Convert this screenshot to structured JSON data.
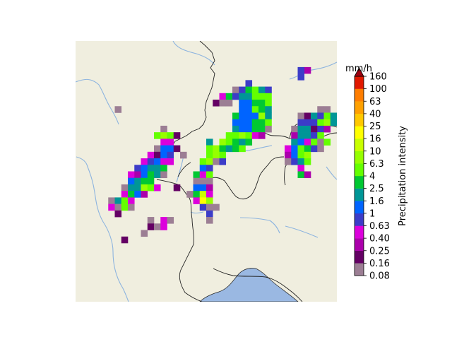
{
  "chart_data": {
    "type": "heatmap",
    "title": "",
    "colorbar": {
      "unit": "mm/h",
      "label": "Precipitation intensity",
      "ticks": [
        "0.08",
        "0.16",
        "0.25",
        "0.40",
        "0.63",
        "1",
        "1.6",
        "2.5",
        "4",
        "6.3",
        "10",
        "16",
        "25",
        "40",
        "63",
        "100",
        "160"
      ],
      "colors": [
        "#9c7e94",
        "#640064",
        "#ab00ab",
        "#dc00dc",
        "#3c3cc8",
        "#0064ff",
        "#009696",
        "#00c832",
        "#64ff00",
        "#96ff00",
        "#c8ff00",
        "#ffff00",
        "#ffc800",
        "#ffa000",
        "#ff7d00",
        "#e11900"
      ],
      "extend_color": "#a0000f"
    },
    "map": {
      "land_color": "#f0eedf",
      "lake_color": "#9ab8e2",
      "river_color": "#8db4df",
      "border_color": "#222222"
    },
    "grid_cols": 40,
    "grid_rows": 40,
    "cells": [
      [
        35,
        4,
        2
      ],
      [
        34,
        4,
        4
      ],
      [
        34,
        5,
        4
      ],
      [
        26,
        6,
        4
      ],
      [
        24,
        7,
        0
      ],
      [
        25,
        7,
        4
      ],
      [
        26,
        7,
        7
      ],
      [
        27,
        7,
        8
      ],
      [
        28,
        7,
        6
      ],
      [
        29,
        7,
        4
      ],
      [
        22,
        8,
        3
      ],
      [
        23,
        8,
        7
      ],
      [
        24,
        8,
        4
      ],
      [
        25,
        8,
        6
      ],
      [
        26,
        8,
        6
      ],
      [
        27,
        8,
        8
      ],
      [
        28,
        8,
        8
      ],
      [
        29,
        8,
        8
      ],
      [
        21,
        9,
        1
      ],
      [
        22,
        9,
        0
      ],
      [
        23,
        9,
        0
      ],
      [
        25,
        9,
        5
      ],
      [
        26,
        9,
        5
      ],
      [
        27,
        9,
        7
      ],
      [
        28,
        9,
        7
      ],
      [
        29,
        9,
        8
      ],
      [
        6,
        10,
        0
      ],
      [
        25,
        10,
        5
      ],
      [
        26,
        10,
        5
      ],
      [
        27,
        10,
        8
      ],
      [
        28,
        10,
        7
      ],
      [
        29,
        10,
        6
      ],
      [
        37,
        10,
        0
      ],
      [
        38,
        10,
        0
      ],
      [
        24,
        11,
        7
      ],
      [
        25,
        11,
        5
      ],
      [
        26,
        11,
        5
      ],
      [
        27,
        11,
        5
      ],
      [
        28,
        11,
        9
      ],
      [
        29,
        11,
        6
      ],
      [
        34,
        11,
        0
      ],
      [
        35,
        11,
        1
      ],
      [
        36,
        11,
        6
      ],
      [
        37,
        11,
        4
      ],
      [
        38,
        11,
        8
      ],
      [
        39,
        11,
        6
      ],
      [
        24,
        12,
        5
      ],
      [
        25,
        12,
        5
      ],
      [
        26,
        12,
        5
      ],
      [
        27,
        12,
        7
      ],
      [
        28,
        12,
        7
      ],
      [
        29,
        12,
        8
      ],
      [
        34,
        12,
        4
      ],
      [
        35,
        12,
        4
      ],
      [
        36,
        12,
        4
      ],
      [
        37,
        12,
        8
      ],
      [
        38,
        12,
        9
      ],
      [
        39,
        12,
        6
      ],
      [
        13,
        13,
        0
      ],
      [
        24,
        13,
        6
      ],
      [
        25,
        13,
        5
      ],
      [
        26,
        13,
        5
      ],
      [
        27,
        13,
        7
      ],
      [
        28,
        13,
        7
      ],
      [
        29,
        13,
        0
      ],
      [
        33,
        13,
        0
      ],
      [
        34,
        13,
        6
      ],
      [
        35,
        13,
        6
      ],
      [
        36,
        13,
        1
      ],
      [
        37,
        13,
        4
      ],
      [
        38,
        13,
        2
      ],
      [
        12,
        14,
        8
      ],
      [
        13,
        14,
        9
      ],
      [
        14,
        14,
        8
      ],
      [
        15,
        14,
        1
      ],
      [
        23,
        14,
        8
      ],
      [
        24,
        14,
        8
      ],
      [
        25,
        14,
        9
      ],
      [
        26,
        14,
        8
      ],
      [
        27,
        14,
        3
      ],
      [
        28,
        14,
        2
      ],
      [
        33,
        14,
        2
      ],
      [
        34,
        14,
        6
      ],
      [
        35,
        14,
        6
      ],
      [
        36,
        14,
        4
      ],
      [
        37,
        14,
        8
      ],
      [
        13,
        15,
        3
      ],
      [
        14,
        15,
        3
      ],
      [
        20,
        15,
        6
      ],
      [
        22,
        15,
        9
      ],
      [
        23,
        15,
        8
      ],
      [
        24,
        15,
        7
      ],
      [
        25,
        15,
        6
      ],
      [
        26,
        15,
        7
      ],
      [
        33,
        15,
        6
      ],
      [
        34,
        15,
        5
      ],
      [
        35,
        15,
        3
      ],
      [
        36,
        15,
        8
      ],
      [
        37,
        15,
        0
      ],
      [
        38,
        15,
        8
      ],
      [
        12,
        16,
        0
      ],
      [
        13,
        16,
        5
      ],
      [
        14,
        16,
        5
      ],
      [
        15,
        16,
        1
      ],
      [
        20,
        16,
        8
      ],
      [
        21,
        16,
        9
      ],
      [
        22,
        16,
        7
      ],
      [
        23,
        16,
        6
      ],
      [
        24,
        16,
        7
      ],
      [
        25,
        16,
        8
      ],
      [
        32,
        16,
        3
      ],
      [
        33,
        16,
        5
      ],
      [
        34,
        16,
        8
      ],
      [
        35,
        16,
        7
      ],
      [
        36,
        16,
        4
      ],
      [
        37,
        16,
        0
      ],
      [
        11,
        17,
        3
      ],
      [
        12,
        17,
        1
      ],
      [
        13,
        17,
        5
      ],
      [
        14,
        17,
        4
      ],
      [
        16,
        17,
        0
      ],
      [
        20,
        17,
        8
      ],
      [
        21,
        17,
        9
      ],
      [
        22,
        17,
        8
      ],
      [
        32,
        17,
        2
      ],
      [
        33,
        17,
        5
      ],
      [
        34,
        17,
        8
      ],
      [
        35,
        17,
        9
      ],
      [
        10,
        18,
        3
      ],
      [
        11,
        18,
        4
      ],
      [
        12,
        18,
        5
      ],
      [
        13,
        18,
        3
      ],
      [
        14,
        18,
        3
      ],
      [
        19,
        18,
        8
      ],
      [
        20,
        18,
        9
      ],
      [
        21,
        18,
        0
      ],
      [
        22,
        18,
        4
      ],
      [
        32,
        18,
        0
      ],
      [
        33,
        18,
        4
      ],
      [
        34,
        18,
        6
      ],
      [
        35,
        18,
        8
      ],
      [
        9,
        19,
        4
      ],
      [
        10,
        19,
        5
      ],
      [
        11,
        19,
        6
      ],
      [
        12,
        19,
        6
      ],
      [
        13,
        19,
        7
      ],
      [
        19,
        19,
        5
      ],
      [
        20,
        19,
        4
      ],
      [
        34,
        19,
        3
      ],
      [
        8,
        20,
        3
      ],
      [
        9,
        20,
        2
      ],
      [
        10,
        20,
        5
      ],
      [
        11,
        20,
        7
      ],
      [
        12,
        20,
        6
      ],
      [
        13,
        20,
        0
      ],
      [
        18,
        20,
        7
      ],
      [
        19,
        20,
        3
      ],
      [
        20,
        20,
        8
      ],
      [
        34,
        20,
        7
      ],
      [
        35,
        20,
        2
      ],
      [
        8,
        21,
        5
      ],
      [
        9,
        21,
        6
      ],
      [
        10,
        21,
        7
      ],
      [
        11,
        21,
        7
      ],
      [
        18,
        21,
        0
      ],
      [
        19,
        21,
        0
      ],
      [
        20,
        21,
        0
      ],
      [
        7,
        22,
        0
      ],
      [
        8,
        22,
        6
      ],
      [
        9,
        22,
        6
      ],
      [
        10,
        22,
        9
      ],
      [
        11,
        22,
        8
      ],
      [
        12,
        22,
        3
      ],
      [
        15,
        22,
        1
      ],
      [
        18,
        22,
        5
      ],
      [
        19,
        22,
        5
      ],
      [
        20,
        22,
        2
      ],
      [
        7,
        23,
        3
      ],
      [
        8,
        23,
        7
      ],
      [
        9,
        23,
        5
      ],
      [
        10,
        23,
        2
      ],
      [
        17,
        23,
        0
      ],
      [
        18,
        23,
        7
      ],
      [
        19,
        23,
        10
      ],
      [
        20,
        23,
        3
      ],
      [
        5,
        24,
        0
      ],
      [
        6,
        24,
        6
      ],
      [
        7,
        24,
        8
      ],
      [
        8,
        24,
        3
      ],
      [
        18,
        24,
        3
      ],
      [
        19,
        24,
        11
      ],
      [
        20,
        24,
        9
      ],
      [
        5,
        25,
        3
      ],
      [
        6,
        25,
        0
      ],
      [
        7,
        25,
        8
      ],
      [
        8,
        25,
        0
      ],
      [
        19,
        25,
        4
      ],
      [
        20,
        25,
        0
      ],
      [
        21,
        25,
        0
      ],
      [
        6,
        26,
        1
      ],
      [
        20,
        26,
        4
      ],
      [
        11,
        27,
        0
      ],
      [
        13,
        27,
        3
      ],
      [
        14,
        27,
        0
      ],
      [
        20,
        27,
        0
      ],
      [
        11,
        28,
        1
      ],
      [
        12,
        28,
        0
      ],
      [
        13,
        28,
        3
      ],
      [
        10,
        29,
        0
      ],
      [
        7,
        30,
        1
      ]
    ]
  }
}
